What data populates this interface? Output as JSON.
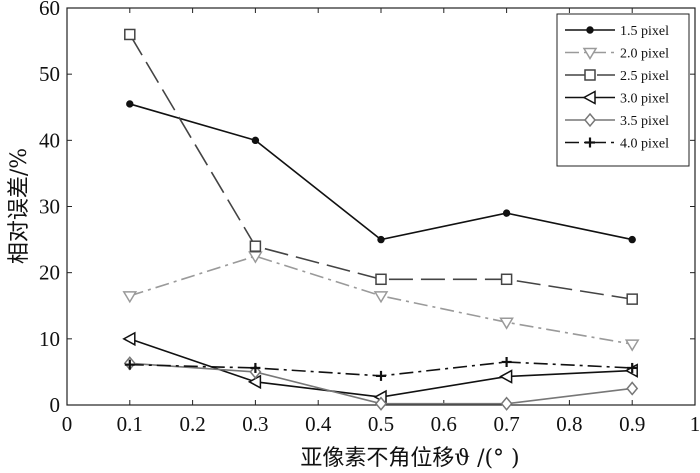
{
  "chart_data": {
    "type": "line",
    "xlabel": "亚像素不角位移ϑ /(° )",
    "ylabel": "相对误差/%",
    "xlim": [
      0,
      1
    ],
    "ylim": [
      0,
      60
    ],
    "x_ticks": [
      "0",
      "0.1",
      "0.2",
      "0.3",
      "0.4",
      "0.5",
      "0.6",
      "0.7",
      "0.8",
      "0.9",
      "1"
    ],
    "y_ticks": [
      "0",
      "10",
      "20",
      "30",
      "40",
      "50",
      "60"
    ],
    "legend_position": "top-right",
    "grid": false,
    "x": [
      0.1,
      0.3,
      0.5,
      0.7,
      0.9
    ],
    "series": [
      {
        "name": "1.5 pixel",
        "values": [
          45.5,
          40,
          25,
          29,
          25
        ],
        "color": "#111111",
        "dash": "solid",
        "marker": "dot"
      },
      {
        "name": "2.0 pixel",
        "values": [
          16.5,
          22.5,
          16.5,
          12.5,
          9.2
        ],
        "color": "#9a9a9a",
        "dash": "dashdot",
        "marker": "triangle-down"
      },
      {
        "name": "2.5 pixel",
        "values": [
          56,
          24,
          19,
          19,
          16
        ],
        "color": "#444444",
        "dash": "longdash",
        "marker": "square"
      },
      {
        "name": "3.0 pixel",
        "values": [
          10,
          3.5,
          1.2,
          4.3,
          5.2
        ],
        "color": "#111111",
        "dash": "solid",
        "marker": "triangle-left"
      },
      {
        "name": "3.5 pixel",
        "values": [
          6.3,
          5,
          0.2,
          0.2,
          2.5
        ],
        "color": "#777777",
        "dash": "solid",
        "marker": "diamond"
      },
      {
        "name": "4.0 pixel",
        "values": [
          6.1,
          5.6,
          4.4,
          6.5,
          5.6
        ],
        "color": "#111111",
        "dash": "dashdot",
        "marker": "plus"
      }
    ]
  }
}
